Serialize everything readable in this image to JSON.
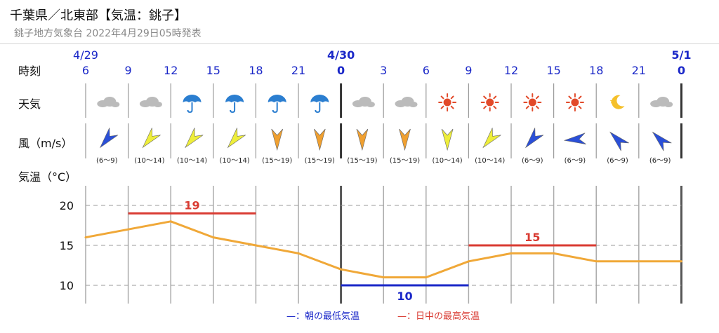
{
  "header": {
    "title": "千葉県／北東部【気温：銚子】",
    "subtitle": "銚子地方気象台 2022年4月29日05時発表"
  },
  "row_labels": {
    "time": "時刻",
    "weather": "天気",
    "wind": "風（m/s）",
    "temp": "気温（°C）"
  },
  "date_labels": [
    {
      "col": 0,
      "text": "4/29"
    },
    {
      "col": 6,
      "text": "4/30"
    },
    {
      "col": 14,
      "text": "5/1"
    }
  ],
  "hours": [
    "6",
    "9",
    "12",
    "15",
    "18",
    "21",
    "0",
    "3",
    "6",
    "9",
    "12",
    "15",
    "18",
    "21",
    "0"
  ],
  "weather": [
    {
      "icon": "cloud-icon"
    },
    {
      "icon": "cloud-icon"
    },
    {
      "icon": "umbrella-icon"
    },
    {
      "icon": "umbrella-icon"
    },
    {
      "icon": "umbrella-icon"
    },
    {
      "icon": "umbrella-icon"
    },
    {
      "icon": "cloud-icon"
    },
    {
      "icon": "cloud-icon"
    },
    {
      "icon": "sun-icon"
    },
    {
      "icon": "sun-icon"
    },
    {
      "icon": "sun-icon"
    },
    {
      "icon": "sun-icon"
    },
    {
      "icon": "moon-icon"
    },
    {
      "icon": "cloud-icon"
    }
  ],
  "wind": [
    {
      "range": "(6〜9)",
      "dir": "SW",
      "color": "#2a4fd8"
    },
    {
      "range": "(10〜14)",
      "dir": "SW",
      "color": "#eeee3a"
    },
    {
      "range": "(10〜14)",
      "dir": "SW",
      "color": "#eeee3a"
    },
    {
      "range": "(10〜14)",
      "dir": "SW",
      "color": "#eeee3a"
    },
    {
      "range": "(15〜19)",
      "dir": "S",
      "color": "#f0a030"
    },
    {
      "range": "(15〜19)",
      "dir": "S",
      "color": "#f0a030"
    },
    {
      "range": "(15〜19)",
      "dir": "S",
      "color": "#f0a030"
    },
    {
      "range": "(15〜19)",
      "dir": "S",
      "color": "#f0a030"
    },
    {
      "range": "(10〜14)",
      "dir": "S",
      "color": "#eeee3a"
    },
    {
      "range": "(10〜14)",
      "dir": "SW",
      "color": "#eeee3a"
    },
    {
      "range": "(6〜9)",
      "dir": "SW",
      "color": "#2a4fd8"
    },
    {
      "range": "(6〜9)",
      "dir": "W",
      "color": "#2a4fd8"
    },
    {
      "range": "(6〜9)",
      "dir": "NW",
      "color": "#2a4fd8"
    },
    {
      "range": "(6〜9)",
      "dir": "NW",
      "color": "#2a4fd8"
    }
  ],
  "chart_data": {
    "type": "line",
    "x": [
      "4/29 6",
      "9",
      "12",
      "15",
      "18",
      "21",
      "4/30 0",
      "3",
      "6",
      "9",
      "12",
      "15",
      "18",
      "21",
      "5/1 0"
    ],
    "series": [
      {
        "values": [
          16,
          17,
          18,
          16,
          15,
          14,
          12,
          11,
          11,
          13,
          14,
          14,
          13,
          13,
          13
        ],
        "color": "#f0a838"
      }
    ],
    "yticks": [
      10,
      15,
      20
    ],
    "ylim": [
      7.8,
      22.4
    ],
    "grid": true,
    "daily_high": [
      {
        "label": "19",
        "value": 19,
        "from_col": 1,
        "to_col": 4,
        "color": "#d93b32"
      },
      {
        "label": "15",
        "value": 15,
        "from_col": 9,
        "to_col": 12,
        "color": "#d93b32"
      }
    ],
    "daily_low": [
      {
        "label": "10",
        "value": 10,
        "from_col": 6,
        "to_col": 9,
        "color": "#1a27c8"
      }
    ],
    "legend": {
      "low_label": "—：朝の最低気温",
      "high_label": "—：日中の最高気温",
      "low_color": "#1a27c8",
      "high_color": "#d93b32",
      "placement": "bottom-right"
    }
  }
}
